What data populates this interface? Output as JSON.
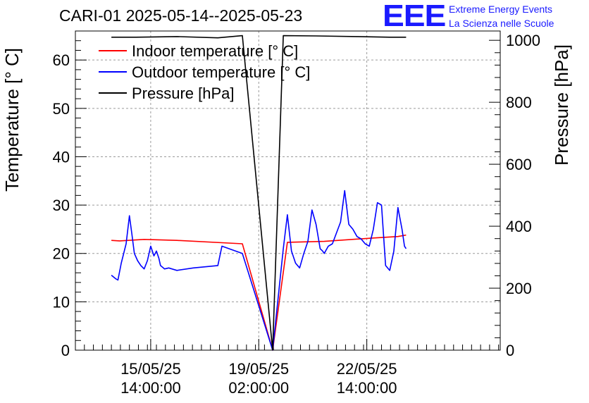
{
  "chart_data": {
    "type": "line",
    "title": "CARI-01 2025-05-14--2025-05-23",
    "ylabel": "Temperature [° C]",
    "y2label": "Pressure [hPa]",
    "ylim": [
      0,
      66
    ],
    "y2lim": [
      0,
      1030
    ],
    "yticks": [
      0,
      10,
      20,
      30,
      40,
      50,
      60
    ],
    "y2ticks": [
      0,
      200,
      400,
      600,
      800,
      1000
    ],
    "xlim": [
      -44,
      475
    ],
    "xticks": [
      {
        "t": 48,
        "line1": "15/05/25",
        "line2": "14:00:00"
      },
      {
        "t": 180,
        "line1": "19/05/25",
        "line2": "02:00:00"
      },
      {
        "t": 312,
        "line1": "22/05/25",
        "line2": "14:00:00"
      }
    ],
    "grid": true,
    "legend_position": "top-left",
    "series": [
      {
        "name": "Indoor temperature [° C]",
        "color": "#ff0000",
        "axis": "left",
        "x": [
          0,
          10,
          40,
          80,
          160,
          197,
          215,
          260,
          320,
          350,
          360
        ],
        "y": [
          22.7,
          22.6,
          22.9,
          22.7,
          22.0,
          0.0,
          22.3,
          22.5,
          23.2,
          23.5,
          23.8
        ]
      },
      {
        "name": "Outdoor temperature [° C]",
        "color": "#0000ff",
        "axis": "left",
        "x": [
          0,
          5,
          8,
          12,
          18,
          22,
          25,
          28,
          32,
          36,
          40,
          44,
          48,
          52,
          55,
          58,
          60,
          62,
          65,
          70,
          80,
          100,
          130,
          135,
          160,
          197,
          210,
          215,
          220,
          225,
          230,
          235,
          240,
          245,
          250,
          255,
          258,
          260,
          265,
          270,
          280,
          285,
          290,
          295,
          300,
          305,
          310,
          315,
          320,
          325,
          330,
          335,
          340,
          345,
          350,
          355,
          358,
          360
        ],
        "y": [
          15.5,
          14.8,
          14.5,
          18.0,
          22.0,
          27.8,
          24.0,
          20.0,
          18.5,
          17.5,
          16.8,
          18.5,
          21.5,
          19.5,
          20.5,
          19.0,
          17.5,
          17.2,
          16.8,
          17.0,
          16.5,
          17.0,
          17.5,
          21.5,
          20.0,
          0.0,
          21.0,
          28.0,
          20.5,
          18.0,
          17.0,
          20.0,
          22.5,
          29.0,
          26.0,
          21.0,
          20.5,
          20.0,
          21.5,
          22.0,
          26.5,
          33.0,
          26.0,
          25.0,
          23.5,
          23.0,
          22.0,
          21.5,
          25.0,
          30.5,
          30.0,
          17.5,
          16.5,
          20.5,
          29.5,
          25.0,
          21.5,
          21.0
        ]
      },
      {
        "name": "Pressure [hPa]",
        "color": "#000000",
        "axis": "right",
        "x": [
          0,
          30,
          80,
          130,
          160,
          197,
          210,
          250,
          300,
          340,
          360
        ],
        "y": [
          1010,
          1010,
          1012,
          1008,
          1015,
          0,
          1015,
          1014,
          1012,
          1010,
          1010
        ]
      }
    ]
  }
}
